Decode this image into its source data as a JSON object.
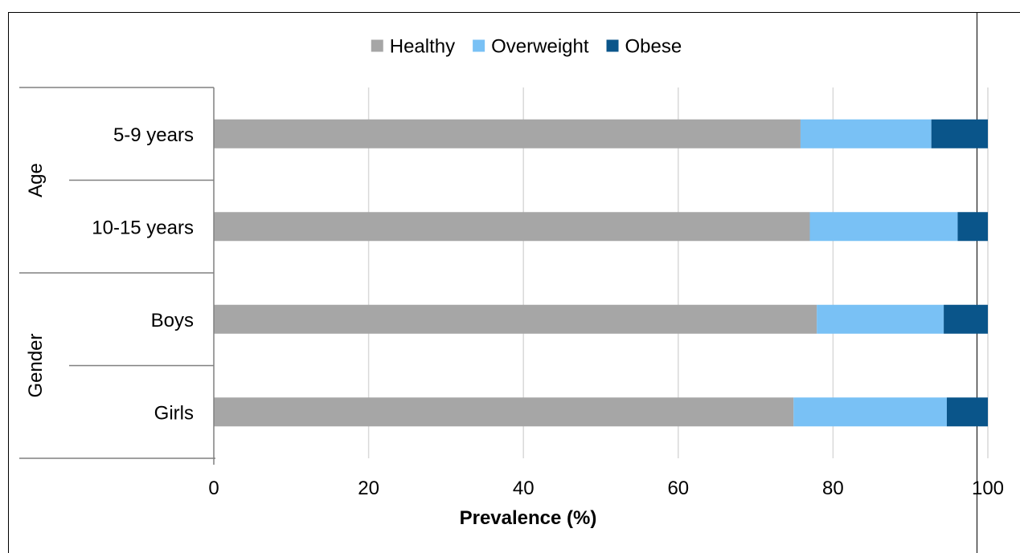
{
  "chart_data": {
    "type": "bar",
    "orientation": "horizontal",
    "stacked": true,
    "groups": [
      {
        "label": "Age",
        "categories": [
          "5-9 years",
          "10-15 years"
        ]
      },
      {
        "label": "Gender",
        "categories": [
          "Boys",
          "Girls"
        ]
      }
    ],
    "categories": [
      "5-9 years",
      "10-15 years",
      "Boys",
      "Girls"
    ],
    "series": [
      {
        "name": "Healthy",
        "color": "#a6a6a6",
        "values": [
          75.8,
          77.0,
          77.9,
          74.9
        ]
      },
      {
        "name": "Overweight",
        "color": "#79c1f5",
        "values": [
          16.9,
          19.1,
          16.4,
          19.8
        ]
      },
      {
        "name": "Obese",
        "color": "#0a558a",
        "values": [
          7.3,
          3.9,
          5.7,
          5.3
        ]
      }
    ],
    "xlabel": "Prevalence (%)",
    "xlim": [
      0,
      100
    ],
    "xticks": [
      "0",
      "20",
      "40",
      "60",
      "80",
      "100"
    ],
    "grid": true,
    "legend_position": "top"
  }
}
